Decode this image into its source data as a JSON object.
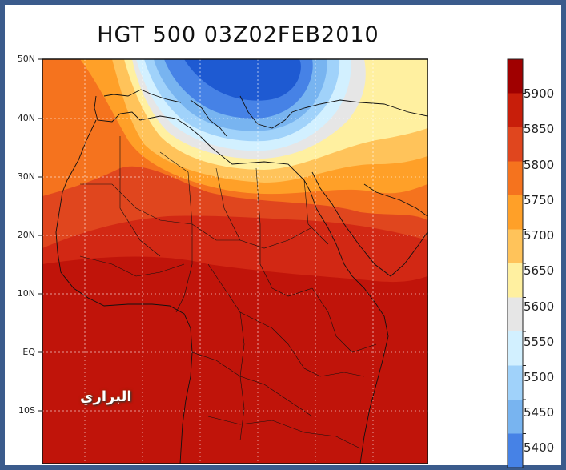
{
  "title": "HGT 500 03Z02FEB2010",
  "latitude_labels": [
    "50N",
    "40N",
    "30N",
    "20N",
    "10N",
    "EQ",
    "10S"
  ],
  "colorbar": {
    "labels": [
      "5900",
      "5850",
      "5800",
      "5750",
      "5700",
      "5650",
      "5600",
      "5550",
      "5500",
      "5450",
      "5400"
    ],
    "colors": [
      "#a00000",
      "#c81e0a",
      "#e0461e",
      "#f5731e",
      "#ffa028",
      "#ffc35a",
      "#fff0a0",
      "#e6e6e6",
      "#d2f0ff",
      "#a0d2fa",
      "#78b4f0",
      "#4682e6"
    ]
  },
  "watermark": "البراري",
  "field_colors": {
    "deep_red": "#c0140a",
    "blue_dark": "#1e5ad2",
    "frame": "#3b5b8c"
  }
}
